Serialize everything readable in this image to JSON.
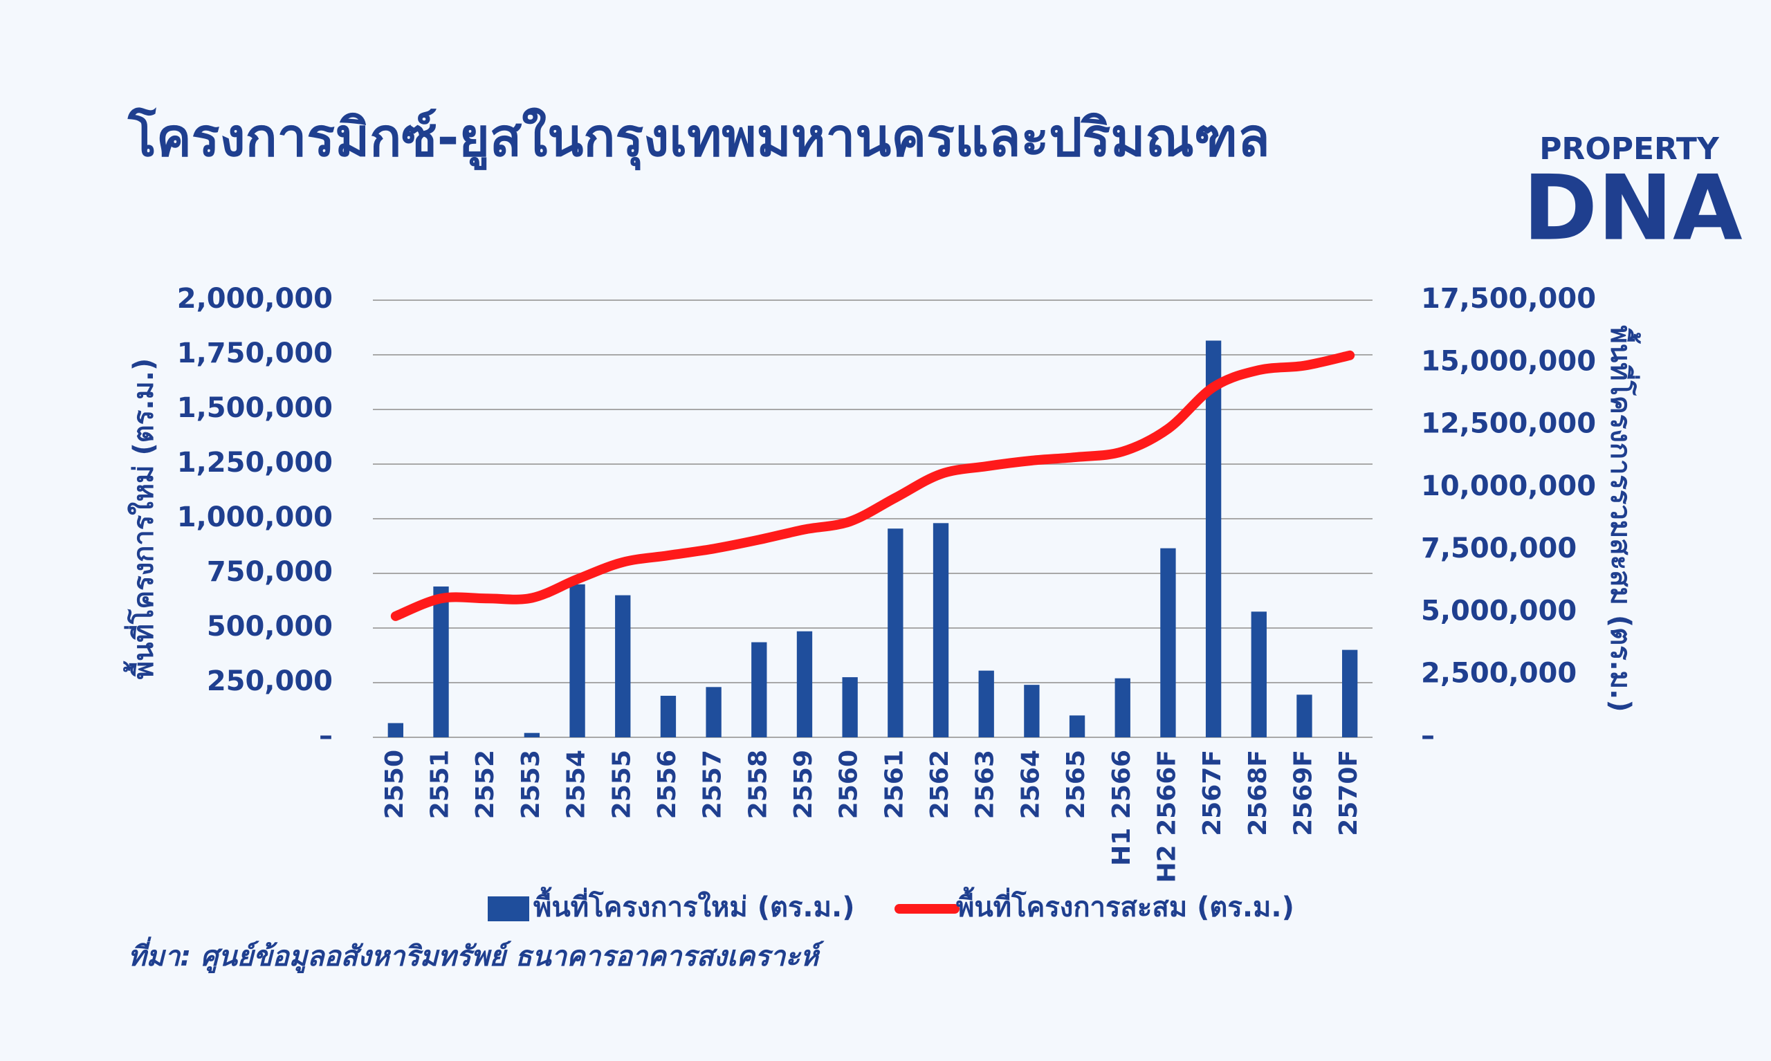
{
  "chart_data": {
    "type": "bar-line",
    "title": "โครงการมิกซ์-ยูสในกรุงเทพมหานครและปริมณฑล",
    "y_label": "พื้นที่โครงการใหม่ (ตร.ม.)",
    "y2_label": "พื้นที่โครงการรวมสะสม (ตร.ม.)",
    "source": "ที่มา:  ศูนย์ข้อมูลอสังหาริมทรัพย์ ธนาคารอาคารสงเคราะห์",
    "logo": {
      "top": "PROPERTY",
      "bottom": "DNA"
    },
    "categories": [
      "2550",
      "2551",
      "2552",
      "2553",
      "2554",
      "2555",
      "2556",
      "2557",
      "2558",
      "2559",
      "2560",
      "2561",
      "2562",
      "2563",
      "2564",
      "2565",
      "H1 2566",
      "H2 2566F",
      "2567F",
      "2568F",
      "2569F",
      "2570F"
    ],
    "series": [
      {
        "name": "พื้นที่โครงการใหม่ (ตร.ม.)",
        "color": "#1f4e9c",
        "kind": "bar",
        "values": [
          65000,
          690000,
          0,
          20000,
          700000,
          650000,
          190000,
          230000,
          435000,
          485000,
          275000,
          955000,
          980000,
          305000,
          240000,
          100000,
          270000,
          865000,
          1815000,
          575000,
          195000,
          400000
        ]
      },
      {
        "name": "พื้นที่โครงการสะสม (ตร.ม.)",
        "color": "#ff1a1a",
        "kind": "line",
        "axis": "y2",
        "values": [
          4850000,
          5560000,
          5560000,
          5580000,
          6330000,
          7010000,
          7280000,
          7550000,
          7910000,
          8320000,
          8640000,
          9590000,
          10540000,
          10850000,
          11080000,
          11220000,
          11440000,
          12350000,
          14020000,
          14700000,
          14880000,
          15290000
        ]
      }
    ],
    "ylim": [
      0,
      2000000
    ],
    "yticks": [
      {
        "value": 0,
        "label": "–"
      },
      {
        "value": 250000,
        "label": "250,000"
      },
      {
        "value": 500000,
        "label": "500,000"
      },
      {
        "value": 750000,
        "label": "750,000"
      },
      {
        "value": 1000000,
        "label": "1,000,000"
      },
      {
        "value": 1250000,
        "label": "1,250,000"
      },
      {
        "value": 1500000,
        "label": "1,500,000"
      },
      {
        "value": 1750000,
        "label": "1,750,000"
      },
      {
        "value": 2000000,
        "label": "2,000,000"
      }
    ],
    "y2lim": [
      0,
      17500000
    ],
    "y2ticks": [
      {
        "value": 0,
        "label": "–"
      },
      {
        "value": 2500000,
        "label": "2,500,000"
      },
      {
        "value": 5000000,
        "label": "5,000,000"
      },
      {
        "value": 7500000,
        "label": "7,500,000"
      },
      {
        "value": 10000000,
        "label": "10,000,000"
      },
      {
        "value": 12500000,
        "label": "12,500,000"
      },
      {
        "value": 15000000,
        "label": "15,000,000"
      },
      {
        "value": 17500000,
        "label": "17,500,000"
      }
    ],
    "grid": true
  }
}
